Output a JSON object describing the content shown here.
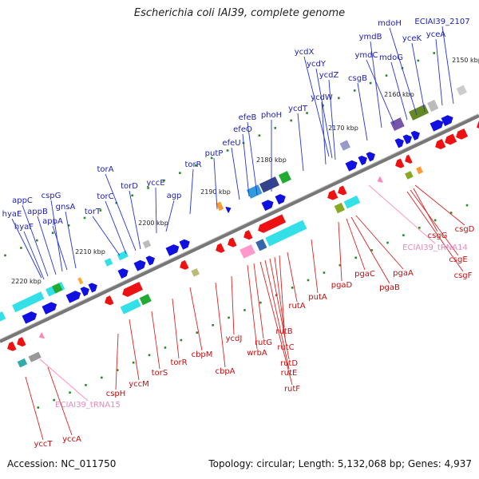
{
  "title": "Escherichia coli IAI39, complete genome",
  "footer": {
    "accession": "Accession: NC_011750",
    "summary": "Topology: circular; Length: 5,132,068 bp; Genes: 4,937"
  },
  "ticks": [
    "2150 kbp",
    "2160 kbp",
    "2170 kbp",
    "2180 kbp",
    "2190 kbp",
    "2200 kbp",
    "2210 kbp",
    "2220 kbp"
  ],
  "top_genes": [
    "hyaF",
    "hyaE",
    "appC",
    "appB",
    "cspG",
    "appA",
    "gnsA",
    "torT",
    "torC",
    "torA",
    "torD",
    "yccE",
    "agp",
    "torR",
    "putP",
    "efeU",
    "efeO",
    "efeB",
    "phoH",
    "ycdT",
    "ycdW",
    "ycdZ",
    "ycdY",
    "ycdX",
    "csgB",
    "ymdB",
    "ymdC",
    "mdoG",
    "mdoH",
    "yceK",
    "yceA",
    "ECIAI39_2107"
  ],
  "bottom_genes": [
    "csgD",
    "csgG",
    "csgE",
    "csgF",
    "ECIAI39_tRNA14",
    "pgaA",
    "pgaB",
    "pgaC",
    "pgaD",
    "putA",
    "rutA",
    "rutB",
    "rutC",
    "rutD",
    "rutE",
    "rutF",
    "rutG",
    "wrbA",
    "ycdJ",
    "cbpA",
    "cbpM",
    "torR",
    "torS",
    "yccM",
    "cspH",
    "ECIAI39_tRNA15",
    "yccA",
    "yccT"
  ],
  "colors": {
    "forward": "#1010e0",
    "reverse": "#ee1111",
    "rna": "#ff88bb",
    "backbone": "#777777"
  }
}
